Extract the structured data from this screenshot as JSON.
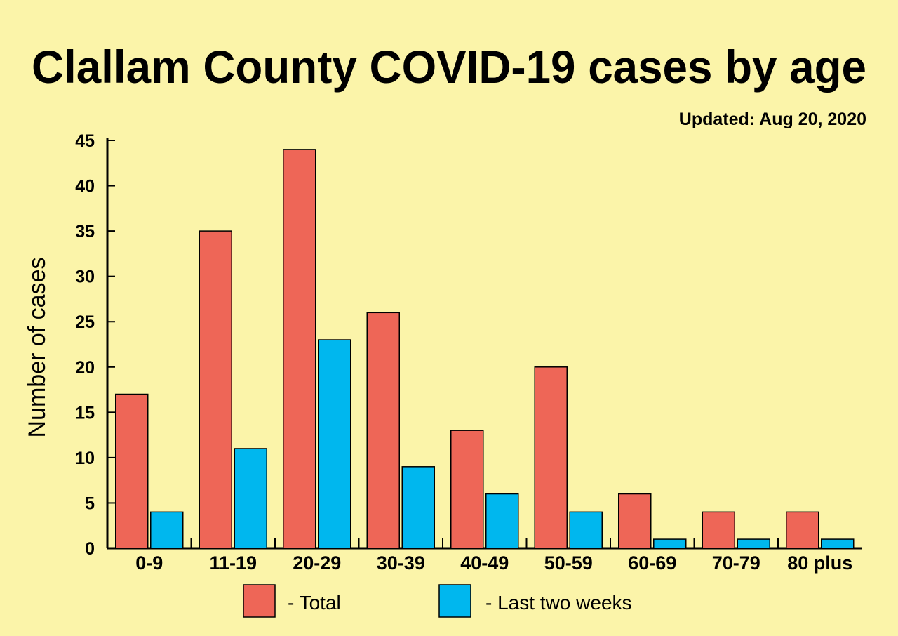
{
  "chart_data": {
    "type": "bar",
    "title": "Clallam County COVID-19 cases by age",
    "subtitle": "Updated: Aug 20, 2020",
    "xlabel": "",
    "ylabel": "Number of cases",
    "ylim": [
      0,
      45
    ],
    "yticks": [
      0,
      5,
      10,
      15,
      20,
      25,
      30,
      35,
      40,
      45
    ],
    "grid": false,
    "legend_placement": "bottom",
    "categories": [
      "0-9",
      "11-19",
      "20-29",
      "30-39",
      "40-49",
      "50-59",
      "60-69",
      "70-79",
      "80 plus"
    ],
    "series": [
      {
        "name": "- Total",
        "color": "#ee6657",
        "values": [
          17,
          35,
          44,
          26,
          13,
          20,
          6,
          4,
          4
        ]
      },
      {
        "name": "- Last two weeks",
        "color": "#00b7ee",
        "values": [
          4,
          11,
          23,
          9,
          6,
          4,
          1,
          1,
          1
        ]
      }
    ]
  }
}
